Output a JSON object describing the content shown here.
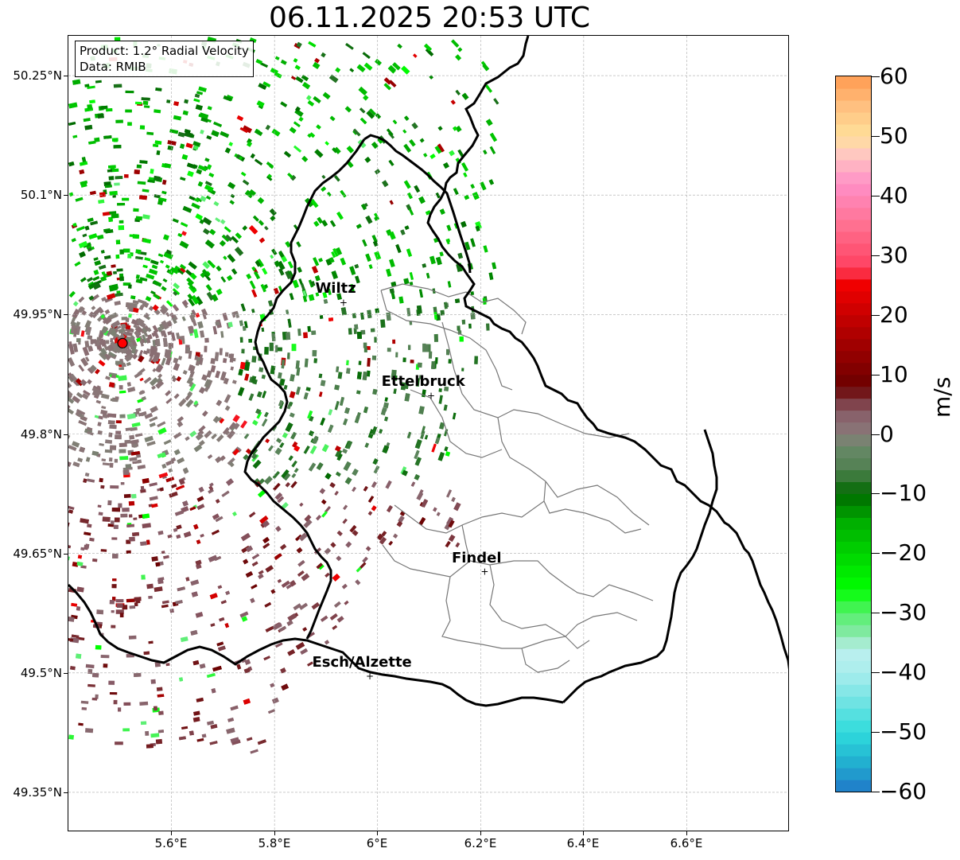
{
  "title": "06.11.2025 20:53 UTC",
  "info": {
    "product": "Product: 1.2° Radial Velocity",
    "data": "Data: RMIB"
  },
  "map_extent": {
    "lon_min": 5.4,
    "lon_max": 6.8,
    "lat_min": 49.3,
    "lat_max": 50.3
  },
  "lat_ticks": [
    {
      "value": 50.25,
      "label": "50.25°N"
    },
    {
      "value": 50.1,
      "label": "50.1°N"
    },
    {
      "value": 49.95,
      "label": "49.95°N"
    },
    {
      "value": 49.8,
      "label": "49.8°N"
    },
    {
      "value": 49.65,
      "label": "49.65°N"
    },
    {
      "value": 49.5,
      "label": "49.5°N"
    },
    {
      "value": 49.35,
      "label": "49.35°N"
    }
  ],
  "lon_ticks": [
    {
      "value": 5.6,
      "label": "5.6°E"
    },
    {
      "value": 5.8,
      "label": "5.8°E"
    },
    {
      "value": 6.0,
      "label": "6°E"
    },
    {
      "value": 6.2,
      "label": "6.2°E"
    },
    {
      "value": 6.4,
      "label": "6.4°E"
    },
    {
      "value": 6.6,
      "label": "6.6°E"
    }
  ],
  "radar_site": {
    "lon": 5.505,
    "lat": 49.914,
    "color": "#ff0000"
  },
  "cities": [
    {
      "name": "Wiltz",
      "lon": 5.934,
      "lat": 49.965
    },
    {
      "name": "Ettelbruck",
      "lon": 6.104,
      "lat": 49.848
    },
    {
      "name": "Findel",
      "lon": 6.208,
      "lat": 49.627
    },
    {
      "name": "Esch/Alzette",
      "lon": 5.985,
      "lat": 49.496
    }
  ],
  "colorbar": {
    "label": "m/s",
    "min": -60,
    "max": 60,
    "ticks": [
      {
        "value": 60,
        "label": "60"
      },
      {
        "value": 50,
        "label": "50"
      },
      {
        "value": 40,
        "label": "40"
      },
      {
        "value": 30,
        "label": "30"
      },
      {
        "value": 20,
        "label": "20"
      },
      {
        "value": 10,
        "label": "10"
      },
      {
        "value": 0,
        "label": "0"
      },
      {
        "value": -10,
        "label": "−10"
      },
      {
        "value": -20,
        "label": "−20"
      },
      {
        "value": -30,
        "label": "−30"
      },
      {
        "value": -40,
        "label": "−40"
      },
      {
        "value": -50,
        "label": "−50"
      },
      {
        "value": -60,
        "label": "−60"
      }
    ],
    "stops": [
      {
        "value": -60,
        "color": "#1f78c8"
      },
      {
        "value": -55,
        "color": "#22b0d0"
      },
      {
        "value": -50,
        "color": "#2fdcdc"
      },
      {
        "value": -45,
        "color": "#6fe3e3"
      },
      {
        "value": -40,
        "color": "#a9eded"
      },
      {
        "value": -36,
        "color": "#bdf0ee"
      },
      {
        "value": -34,
        "color": "#8de8b0"
      },
      {
        "value": -30,
        "color": "#55f06a"
      },
      {
        "value": -26,
        "color": "#00ff00"
      },
      {
        "value": -20,
        "color": "#00d400"
      },
      {
        "value": -15,
        "color": "#00b000"
      },
      {
        "value": -10,
        "color": "#006a00"
      },
      {
        "value": -6,
        "color": "#4f7f4f"
      },
      {
        "value": -2,
        "color": "#6a8a6a"
      },
      {
        "value": 0,
        "color": "#8a7a7a"
      },
      {
        "value": 4,
        "color": "#875a66"
      },
      {
        "value": 8,
        "color": "#6b0000"
      },
      {
        "value": 15,
        "color": "#a00000"
      },
      {
        "value": 25,
        "color": "#f00000"
      },
      {
        "value": 28,
        "color": "#ff4060"
      },
      {
        "value": 35,
        "color": "#ff7090"
      },
      {
        "value": 42,
        "color": "#ff90c8"
      },
      {
        "value": 47,
        "color": "#ffc8c0"
      },
      {
        "value": 50,
        "color": "#ffe09a"
      },
      {
        "value": 55,
        "color": "#ffc080"
      },
      {
        "value": 60,
        "color": "#ff9a50"
      }
    ]
  },
  "colors": {
    "border_country": "#000000",
    "border_canton": "#777777",
    "grid": "#aaaaaa"
  }
}
